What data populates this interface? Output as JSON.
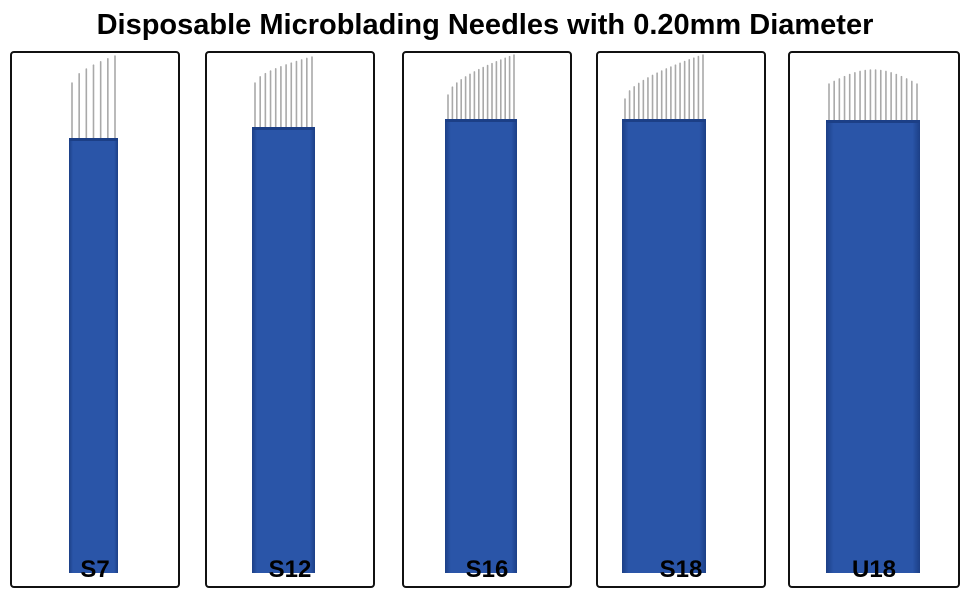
{
  "title": "Disposable Microblading Needles with 0.20mm Diameter",
  "colors": {
    "blade_body": "#2a55a8",
    "blade_edge": "#1c3f86",
    "needle": "#a9a9a9",
    "panel_border": "#111111"
  },
  "needles": [
    {
      "label": "S7",
      "shape": "slope",
      "pins": 7
    },
    {
      "label": "S12",
      "shape": "slope",
      "pins": 12
    },
    {
      "label": "S16",
      "shape": "slope",
      "pins": 16
    },
    {
      "label": "S18",
      "shape": "slope",
      "pins": 18
    },
    {
      "label": "U18",
      "shape": "u",
      "pins": 18
    }
  ]
}
